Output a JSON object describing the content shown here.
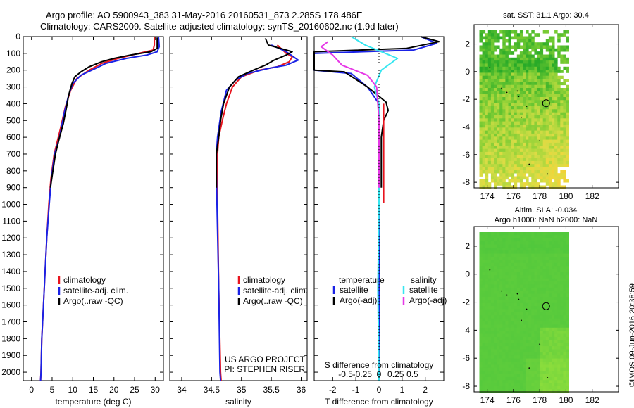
{
  "header": {
    "line1": "Argo profile: AO 5900943_383 31-May-2016 20160531_873 2.285S 178.486E",
    "line2": "Climatology: CARS2009. Satellite-adjusted climatology: synTS_20160602.nc (1.9d later)"
  },
  "credit": "©IMOS 09-Jun-2016 20:38:59",
  "colors": {
    "red": "#e8141e",
    "blue": "#1a22e6",
    "black": "#000000",
    "cyan": "#36e6f0",
    "magenta": "#e639e6"
  },
  "chart_data": [
    {
      "type": "line",
      "xlabel": "temperature (deg C)",
      "ylim": [
        2050,
        0
      ],
      "xlim": [
        -2,
        32
      ],
      "xticks": [
        0,
        5,
        10,
        15,
        20,
        25,
        30
      ],
      "yticks": [
        0,
        100,
        200,
        300,
        400,
        500,
        600,
        700,
        800,
        900,
        1000,
        1100,
        1200,
        1300,
        1400,
        1500,
        1600,
        1700,
        1800,
        1900,
        2000
      ],
      "legend": [
        "climatology",
        "satellite-adj. clim.",
        "Argo(..raw -QC)"
      ],
      "legend_position": "bottom-left",
      "series": [
        {
          "name": "climatology",
          "color": "red",
          "points": [
            [
              29.8,
              0
            ],
            [
              29.8,
              50
            ],
            [
              29.5,
              80
            ],
            [
              26,
              100
            ],
            [
              21,
              130
            ],
            [
              17,
              160
            ],
            [
              14,
              200
            ],
            [
              11,
              250
            ],
            [
              9.5,
              320
            ],
            [
              8.2,
              420
            ],
            [
              7,
              550
            ],
            [
              5.5,
              700
            ],
            [
              4.7,
              850
            ],
            [
              4.2,
              1000
            ],
            [
              3.7,
              1200
            ],
            [
              3.3,
              1400
            ],
            [
              2.9,
              1600
            ],
            [
              2.5,
              1800
            ],
            [
              2.3,
              2000
            ],
            [
              2.2,
              2050
            ]
          ]
        },
        {
          "name": "satellite-adj. clim.",
          "color": "blue",
          "points": [
            [
              30.8,
              0
            ],
            [
              31,
              60
            ],
            [
              30.5,
              90
            ],
            [
              28,
              110
            ],
            [
              23,
              130
            ],
            [
              18,
              160
            ],
            [
              15.5,
              190
            ],
            [
              12,
              230
            ],
            [
              10,
              280
            ],
            [
              9,
              350
            ],
            [
              8,
              450
            ],
            [
              6.8,
              600
            ],
            [
              5.6,
              700
            ],
            [
              4.8,
              850
            ],
            [
              4.3,
              1000
            ],
            [
              3.7,
              1200
            ],
            [
              3.3,
              1400
            ],
            [
              2.9,
              1600
            ],
            [
              2.5,
              1800
            ],
            [
              2.3,
              2000
            ],
            [
              2.2,
              2050
            ]
          ]
        },
        {
          "name": "Argo(..raw -QC)",
          "color": "black",
          "points": [
            [
              30.5,
              5
            ],
            [
              30.5,
              70
            ],
            [
              29,
              90
            ],
            [
              24,
              110
            ],
            [
              20,
              130
            ],
            [
              17,
              150
            ],
            [
              14,
              180
            ],
            [
              12,
              210
            ],
            [
              10.5,
              240
            ],
            [
              9.8,
              280
            ],
            [
              9,
              350
            ],
            [
              8.5,
              420
            ],
            [
              7.7,
              520
            ],
            [
              6.6,
              620
            ],
            [
              5.8,
              700
            ],
            [
              5.2,
              800
            ],
            [
              4.6,
              900
            ]
          ]
        }
      ]
    },
    {
      "type": "line",
      "xlabel": "salinity",
      "ylim": [
        2050,
        0
      ],
      "xlim": [
        33.8,
        36.1
      ],
      "xticks": [
        34,
        34.5,
        35,
        35.5,
        36
      ],
      "legend": [
        "climatology",
        "satellite-adj. clim.",
        "Argo(..raw -QC)"
      ],
      "legend_position": "bottom-right",
      "annotation": [
        "US ARGO PROJECT",
        "PI: STEPHEN RISER"
      ],
      "series": [
        {
          "name": "climatology",
          "color": "red",
          "points": [
            [
              35.6,
              50
            ],
            [
              35.75,
              100
            ],
            [
              35.85,
              120
            ],
            [
              35.8,
              150
            ],
            [
              35.6,
              180
            ],
            [
              35.3,
              200
            ],
            [
              35.0,
              240
            ],
            [
              34.85,
              300
            ],
            [
              34.75,
              400
            ],
            [
              34.68,
              500
            ],
            [
              34.62,
              600
            ],
            [
              34.6,
              700
            ],
            [
              34.6,
              800
            ],
            [
              34.6,
              1000
            ],
            [
              34.62,
              1500
            ],
            [
              34.65,
              2000
            ],
            [
              34.66,
              2050
            ]
          ]
        },
        {
          "name": "satellite-adj. clim.",
          "color": "blue",
          "points": [
            [
              35.5,
              50
            ],
            [
              35.75,
              90
            ],
            [
              35.95,
              140
            ],
            [
              35.75,
              170
            ],
            [
              35.45,
              190
            ],
            [
              35.1,
              220
            ],
            [
              34.9,
              260
            ],
            [
              34.75,
              320
            ],
            [
              34.66,
              450
            ],
            [
              34.6,
              600
            ],
            [
              34.58,
              700
            ],
            [
              34.58,
              800
            ],
            [
              34.59,
              1000
            ],
            [
              34.62,
              1500
            ],
            [
              34.64,
              2000
            ],
            [
              34.65,
              2050
            ]
          ]
        },
        {
          "name": "Argo(..raw -QC)",
          "color": "black",
          "points": [
            [
              35.4,
              10
            ],
            [
              35.45,
              50
            ],
            [
              35.65,
              70
            ],
            [
              35.85,
              90
            ],
            [
              35.75,
              110
            ],
            [
              35.55,
              140
            ],
            [
              35.4,
              170
            ],
            [
              35.2,
              200
            ],
            [
              34.95,
              240
            ],
            [
              34.8,
              300
            ],
            [
              34.7,
              400
            ],
            [
              34.65,
              500
            ],
            [
              34.62,
              600
            ],
            [
              34.58,
              700
            ],
            [
              34.58,
              800
            ],
            [
              34.58,
              900
            ]
          ]
        }
      ]
    },
    {
      "type": "line",
      "xlabel": "T difference from climatology",
      "xlabel_top": "S difference from climatology",
      "ylim": [
        2050,
        0
      ],
      "xlim": [
        -2.8,
        2.8
      ],
      "xticks": [
        -2,
        -1,
        0,
        1,
        2
      ],
      "s_xticks": [
        "-0.5",
        "-0.25",
        "0",
        "0.25",
        "0.5"
      ],
      "legend_titles": [
        "temperature",
        "salinity"
      ],
      "legend": [
        "satellite",
        "Argo(-adj)",
        "satellite",
        "Argo(-adj)"
      ],
      "series": [
        {
          "name": "satellite",
          "color": "blue",
          "points": [
            [
              1.8,
              0
            ],
            [
              2.5,
              40
            ],
            [
              1.5,
              80
            ],
            [
              -2.8,
              100
            ],
            [
              -2.8,
              200
            ],
            [
              -1.2,
              220
            ],
            [
              -0.5,
              300
            ],
            [
              0,
              400
            ],
            [
              0,
              500
            ],
            [
              0,
              700
            ],
            [
              0,
              1000
            ],
            [
              0,
              1500
            ],
            [
              0,
              2000
            ],
            [
              0,
              2050
            ]
          ]
        },
        {
          "name": "Argo(-adj)",
          "color": "black",
          "points": [
            [
              1.8,
              0
            ],
            [
              2.6,
              30
            ],
            [
              1.2,
              70
            ],
            [
              -2.8,
              90
            ],
            [
              -2.8,
              200
            ],
            [
              -1.5,
              210
            ],
            [
              -0.5,
              300
            ],
            [
              0.3,
              390
            ],
            [
              0.4,
              440
            ],
            [
              0.2,
              500
            ],
            [
              0.1,
              600
            ],
            [
              0.1,
              900
            ]
          ]
        },
        {
          "name": "satellite",
          "color": "cyan",
          "points": [
            [
              -1.2,
              0
            ],
            [
              -0.6,
              50
            ],
            [
              0.8,
              130
            ],
            [
              0.1,
              200
            ],
            [
              -0.2,
              300
            ],
            [
              0,
              400
            ],
            [
              0,
              600
            ],
            [
              0,
              800
            ],
            [
              0,
              1000
            ],
            [
              -0.05,
              1500
            ],
            [
              0,
              2050
            ]
          ]
        },
        {
          "name": "Argo(-adj)",
          "color": "magenta",
          "points": [
            [
              -2.2,
              30
            ],
            [
              -2.5,
              60
            ],
            [
              -2,
              110
            ],
            [
              -1.6,
              170
            ],
            [
              -0.5,
              230
            ],
            [
              -0.1,
              300
            ],
            [
              0,
              500
            ],
            [
              0,
              900
            ]
          ]
        },
        {
          "name": "climatology",
          "color": "red",
          "points": [
            [
              0.2,
              400
            ],
            [
              0.2,
              500
            ],
            [
              0.2,
              700
            ],
            [
              0.2,
              990
            ]
          ]
        }
      ]
    },
    {
      "type": "heatmap",
      "title": "sat. SST: 31.1  Argo: 30.4",
      "xlim": [
        173,
        184
      ],
      "ylim": [
        -8.4,
        3.4
      ],
      "xticks": [
        174,
        176,
        178,
        180,
        182
      ],
      "yticks": [
        2,
        0,
        -2,
        -4,
        -6,
        -8
      ],
      "argo_marker": [
        178.486,
        -2.285
      ]
    },
    {
      "type": "heatmap",
      "title": "Altim. SLA: -0.034",
      "subtitle": "Argo h1000: NaN h2000: NaN",
      "xlim": [
        173,
        184
      ],
      "ylim": [
        -8.4,
        3.4
      ],
      "xticks": [
        174,
        176,
        178,
        180,
        182
      ],
      "yticks": [
        2,
        0,
        -2,
        -4,
        -6,
        -8
      ],
      "argo_marker": [
        178.486,
        -2.285
      ]
    }
  ]
}
